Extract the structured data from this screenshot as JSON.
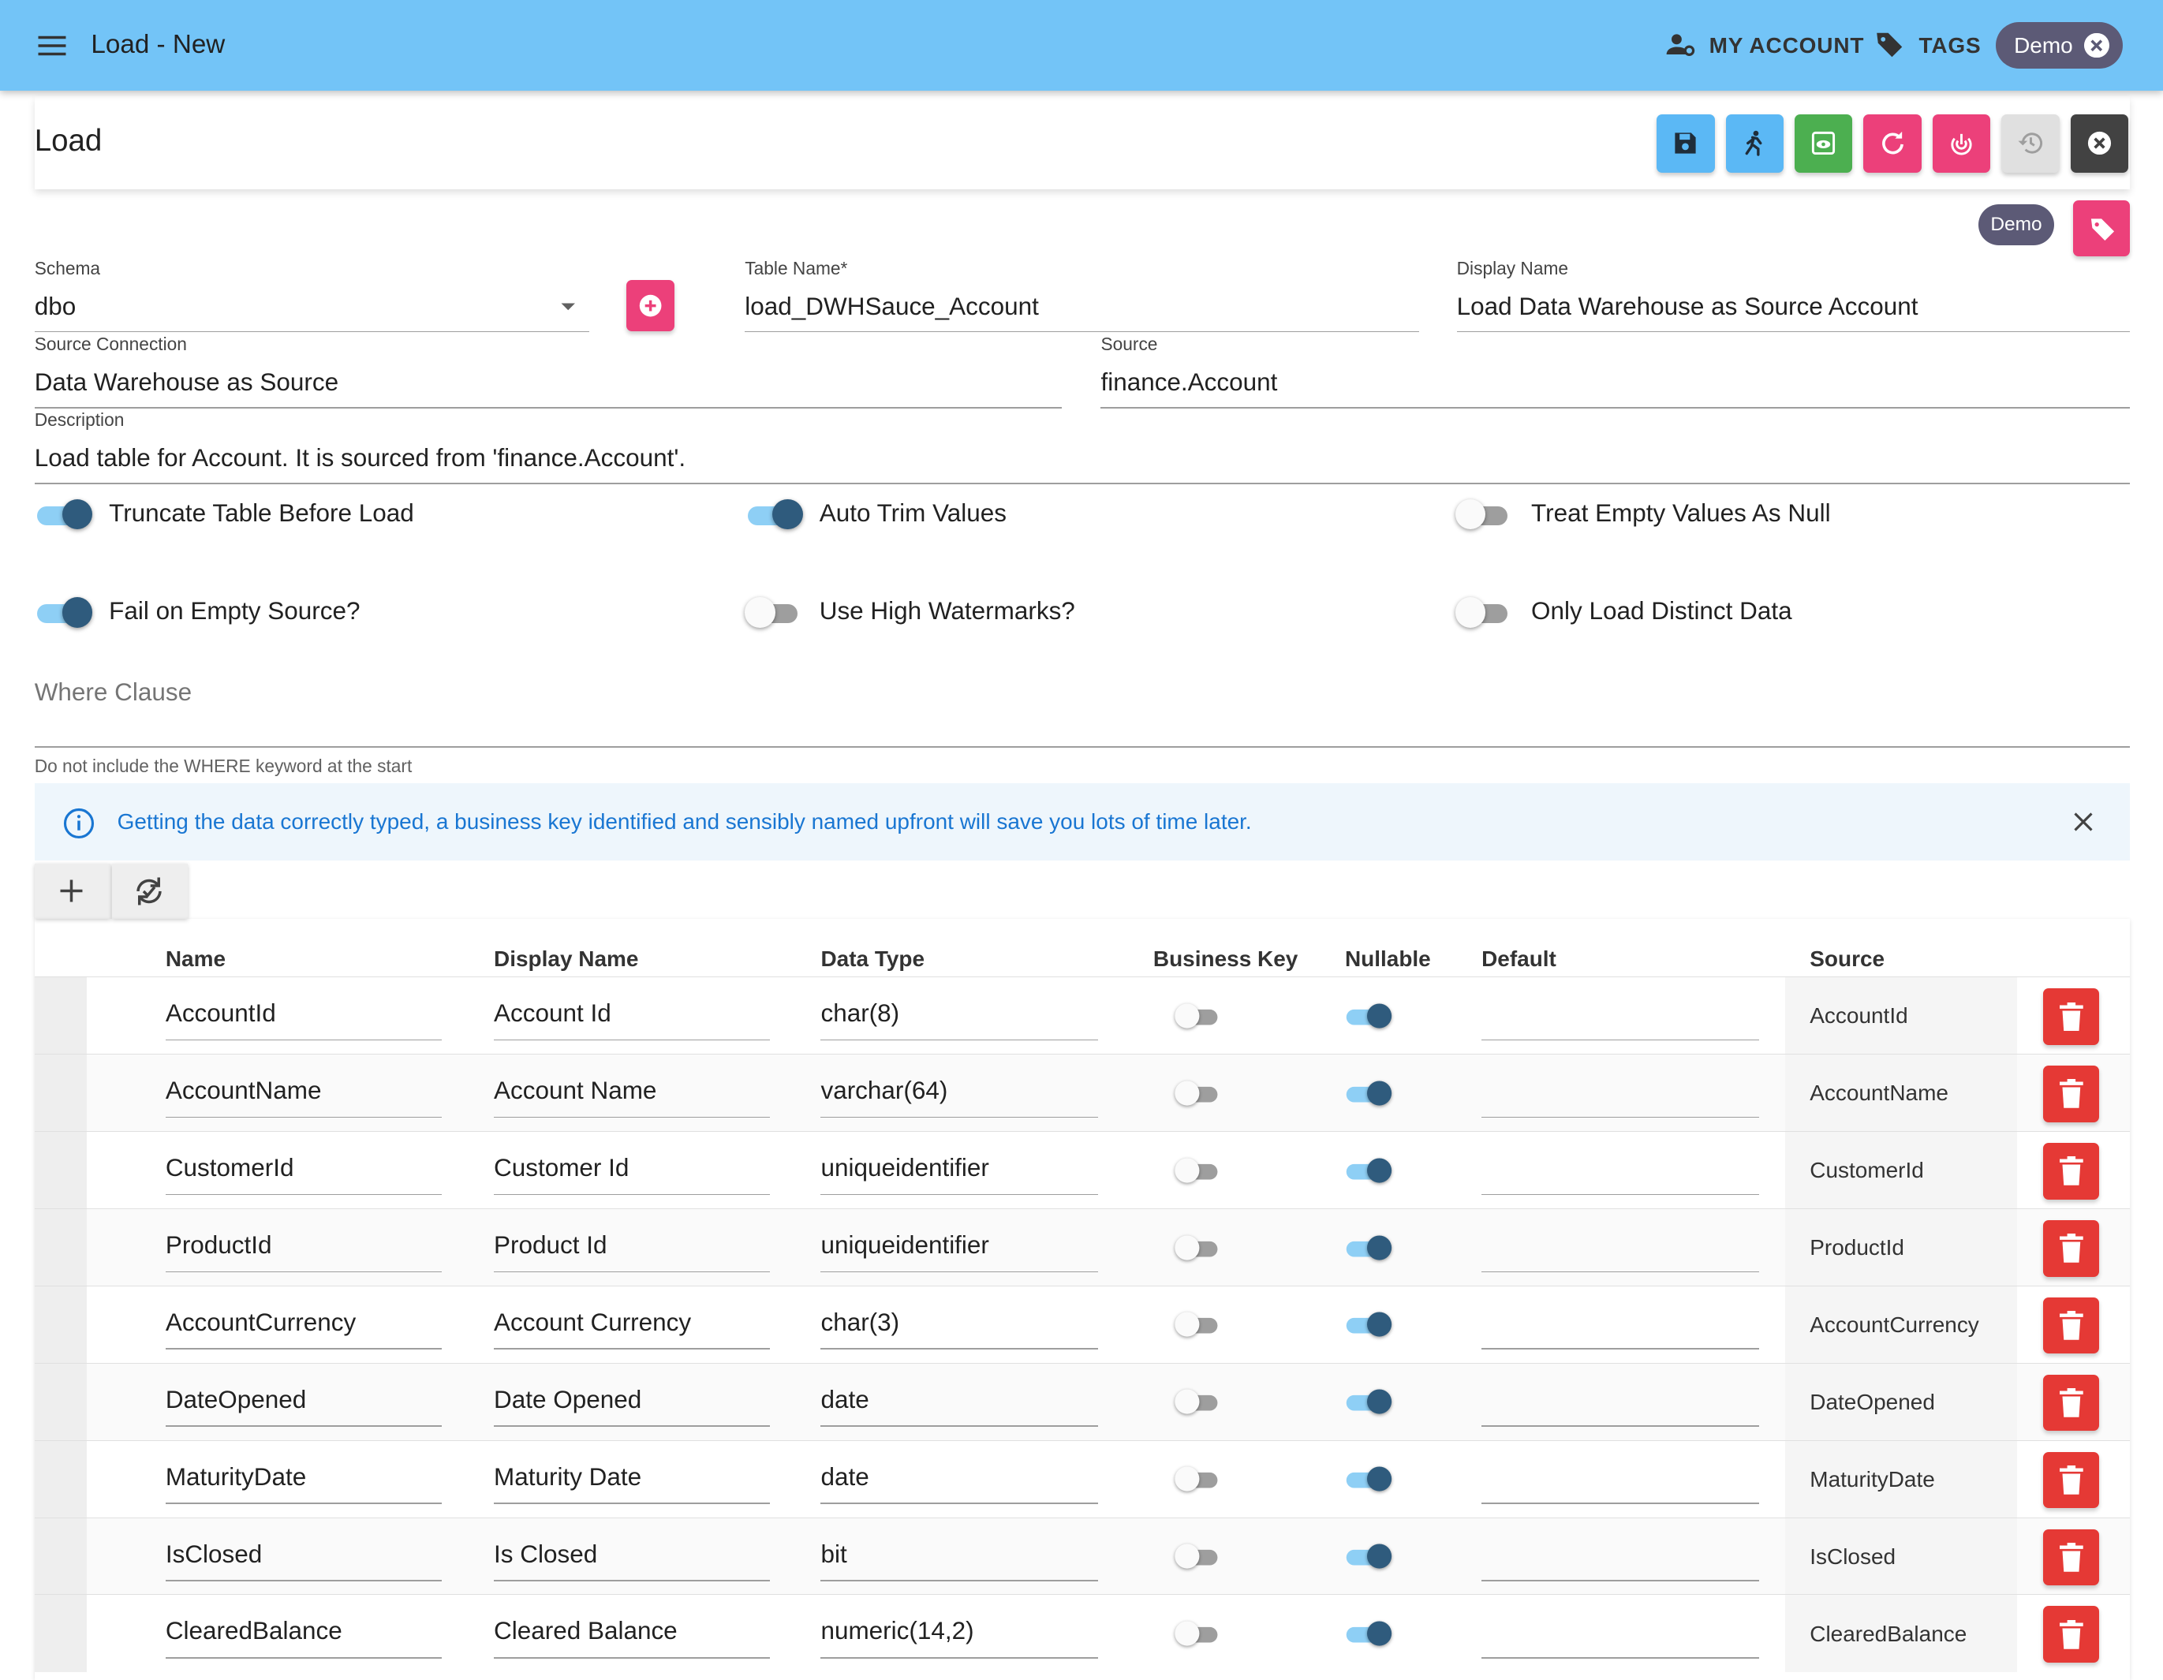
{
  "appbar": {
    "title": "Load - New",
    "my_account": "MY ACCOUNT",
    "tags": "TAGS",
    "chip": "Demo"
  },
  "page": {
    "heading": "Load",
    "tag_chip": "Demo"
  },
  "toolbar": {
    "buttons": [
      {
        "name": "save",
        "color": "#5bb8f5"
      },
      {
        "name": "run",
        "color": "#5bb8f5"
      },
      {
        "name": "preview",
        "color": "#4caf50"
      },
      {
        "name": "refresh",
        "color": "#ec407a"
      },
      {
        "name": "fingerprint",
        "color": "#ec407a"
      },
      {
        "name": "history",
        "color": "#e0e0e0"
      },
      {
        "name": "close",
        "color": "#424242"
      }
    ]
  },
  "form": {
    "schema_label": "Schema",
    "schema_value": "dbo",
    "table_name_label": "Table Name*",
    "table_name_value": "load_DWHSauce_Account",
    "display_name_label": "Display Name",
    "display_name_value": "Load Data Warehouse as Source Account",
    "source_connection_label": "Source Connection",
    "source_connection_value": "Data Warehouse as Source",
    "source_label": "Source",
    "source_value": "finance.Account",
    "description_label": "Description",
    "description_value": "Load table for Account. It is sourced from 'finance.Account'.",
    "where_clause_placeholder": "Where Clause",
    "where_clause_hint": "Do not include the WHERE keyword at the start"
  },
  "switches": {
    "truncate": {
      "label": "Truncate Table Before Load",
      "on": true
    },
    "auto_trim": {
      "label": "Auto Trim Values",
      "on": true
    },
    "empty_null": {
      "label": "Treat Empty Values As Null",
      "on": false
    },
    "fail_empty": {
      "label": "Fail on Empty Source?",
      "on": true
    },
    "high_watermarks": {
      "label": "Use High Watermarks?",
      "on": false
    },
    "distinct": {
      "label": "Only Load Distinct Data",
      "on": false
    }
  },
  "alert": {
    "text": "Getting the data correctly typed, a business key identified and sensibly named upfront will save you lots of time later."
  },
  "columns": {
    "headers": [
      "Name",
      "Display Name",
      "Data Type",
      "Business Key",
      "Nullable",
      "Default",
      "Source"
    ],
    "rows": [
      {
        "name": "AccountId",
        "display": "Account Id",
        "type": "char(8)",
        "business_key": false,
        "nullable": true,
        "default": "",
        "source": "AccountId"
      },
      {
        "name": "AccountName",
        "display": "Account Name",
        "type": "varchar(64)",
        "business_key": false,
        "nullable": true,
        "default": "",
        "source": "AccountName"
      },
      {
        "name": "CustomerId",
        "display": "Customer Id",
        "type": "uniqueidentifier",
        "business_key": false,
        "nullable": true,
        "default": "",
        "source": "CustomerId"
      },
      {
        "name": "ProductId",
        "display": "Product Id",
        "type": "uniqueidentifier",
        "business_key": false,
        "nullable": true,
        "default": "",
        "source": "ProductId"
      },
      {
        "name": "AccountCurrency",
        "display": "Account Currency",
        "type": "char(3)",
        "business_key": false,
        "nullable": true,
        "default": "",
        "source": "AccountCurrency"
      },
      {
        "name": "DateOpened",
        "display": "Date Opened",
        "type": "date",
        "business_key": false,
        "nullable": true,
        "default": "",
        "source": "DateOpened"
      },
      {
        "name": "MaturityDate",
        "display": "Maturity Date",
        "type": "date",
        "business_key": false,
        "nullable": true,
        "default": "",
        "source": "MaturityDate"
      },
      {
        "name": "IsClosed",
        "display": "Is Closed",
        "type": "bit",
        "business_key": false,
        "nullable": true,
        "default": "",
        "source": "IsClosed"
      },
      {
        "name": "ClearedBalance",
        "display": "Cleared Balance",
        "type": "numeric(14,2)",
        "business_key": false,
        "nullable": true,
        "default": "",
        "source": "ClearedBalance"
      }
    ]
  }
}
